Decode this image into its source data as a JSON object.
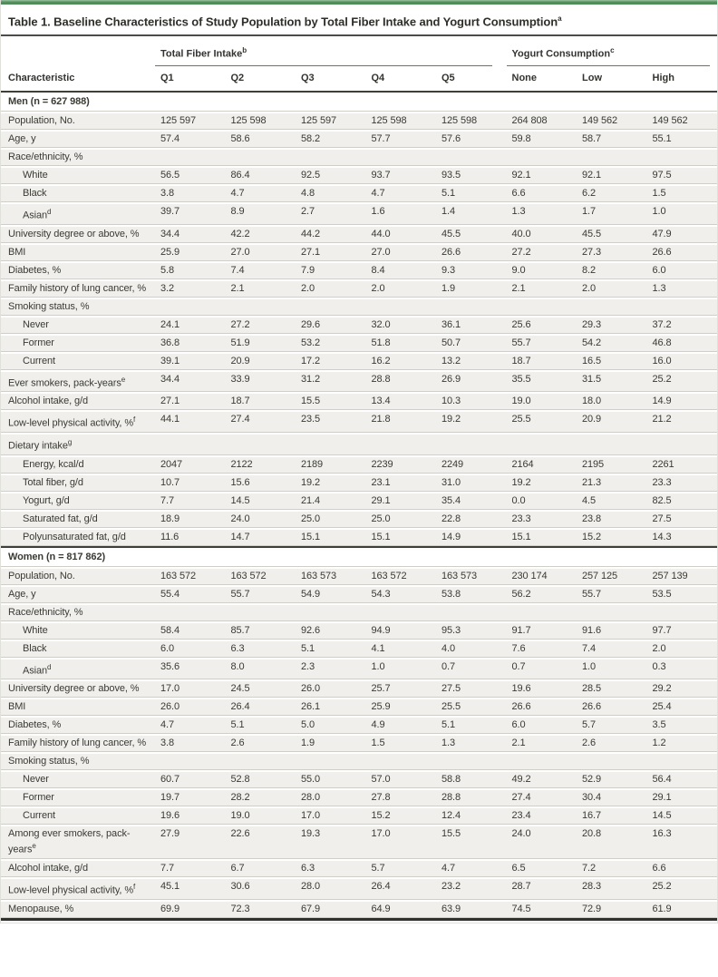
{
  "title": "Table 1. Baseline Characteristics of Study Population by Total Fiber Intake and Yogurt Consumption",
  "title_sup": "a",
  "colors": {
    "accent_bar": "#55915f",
    "row_background": "#f0efeb",
    "rule_dark": "#3f3f3a"
  },
  "header": {
    "characteristic": "Characteristic",
    "groups": [
      {
        "label": "Total Fiber Intake",
        "sup": "b",
        "cols": [
          "Q1",
          "Q2",
          "Q3",
          "Q4",
          "Q5"
        ]
      },
      {
        "label": "Yogurt Consumption",
        "sup": "c",
        "cols": [
          "None",
          "Low",
          "High"
        ]
      }
    ]
  },
  "sections": [
    {
      "label": "Men (n = 627 988)",
      "rows": [
        {
          "label": "Population, No.",
          "values": [
            "125 597",
            "125 598",
            "125 597",
            "125 598",
            "125 598",
            "264 808",
            "149 562",
            "149 562"
          ]
        },
        {
          "label": "Age, y",
          "values": [
            "57.4",
            "58.6",
            "58.2",
            "57.7",
            "57.6",
            "59.8",
            "58.7",
            "55.1"
          ]
        },
        {
          "label": "Race/ethnicity, %",
          "subheader": true
        },
        {
          "label": "White",
          "indent": 1,
          "values": [
            "56.5",
            "86.4",
            "92.5",
            "93.7",
            "93.5",
            "92.1",
            "92.1",
            "97.5"
          ]
        },
        {
          "label": "Black",
          "indent": 1,
          "values": [
            "3.8",
            "4.7",
            "4.8",
            "4.7",
            "5.1",
            "6.6",
            "6.2",
            "1.5"
          ]
        },
        {
          "label": "Asian",
          "sup": "d",
          "indent": 1,
          "values": [
            "39.7",
            "8.9",
            "2.7",
            "1.6",
            "1.4",
            "1.3",
            "1.7",
            "1.0"
          ]
        },
        {
          "label": "University degree or above, %",
          "values": [
            "34.4",
            "42.2",
            "44.2",
            "44.0",
            "45.5",
            "40.0",
            "45.5",
            "47.9"
          ]
        },
        {
          "label": "BMI",
          "values": [
            "25.9",
            "27.0",
            "27.1",
            "27.0",
            "26.6",
            "27.2",
            "27.3",
            "26.6"
          ]
        },
        {
          "label": "Diabetes, %",
          "values": [
            "5.8",
            "7.4",
            "7.9",
            "8.4",
            "9.3",
            "9.0",
            "8.2",
            "6.0"
          ]
        },
        {
          "label": "Family history of lung cancer, %",
          "values": [
            "3.2",
            "2.1",
            "2.0",
            "2.0",
            "1.9",
            "2.1",
            "2.0",
            "1.3"
          ]
        },
        {
          "label": "Smoking status, %",
          "subheader": true
        },
        {
          "label": "Never",
          "indent": 1,
          "values": [
            "24.1",
            "27.2",
            "29.6",
            "32.0",
            "36.1",
            "25.6",
            "29.3",
            "37.2"
          ]
        },
        {
          "label": "Former",
          "indent": 1,
          "values": [
            "36.8",
            "51.9",
            "53.2",
            "51.8",
            "50.7",
            "55.7",
            "54.2",
            "46.8"
          ]
        },
        {
          "label": "Current",
          "indent": 1,
          "values": [
            "39.1",
            "20.9",
            "17.2",
            "16.2",
            "13.2",
            "18.7",
            "16.5",
            "16.0"
          ]
        },
        {
          "label": "Ever smokers, pack-years",
          "sup": "e",
          "values": [
            "34.4",
            "33.9",
            "31.2",
            "28.8",
            "26.9",
            "35.5",
            "31.5",
            "25.2"
          ]
        },
        {
          "label": "Alcohol intake, g/d",
          "values": [
            "27.1",
            "18.7",
            "15.5",
            "13.4",
            "10.3",
            "19.0",
            "18.0",
            "14.9"
          ]
        },
        {
          "label": "Low-level physical activity, %",
          "sup": "f",
          "values": [
            "44.1",
            "27.4",
            "23.5",
            "21.8",
            "19.2",
            "25.5",
            "20.9",
            "21.2"
          ]
        },
        {
          "label": "Dietary intake",
          "sup": "g",
          "subheader": true
        },
        {
          "label": "Energy, kcal/d",
          "indent": 1,
          "values": [
            "2047",
            "2122",
            "2189",
            "2239",
            "2249",
            "2164",
            "2195",
            "2261"
          ]
        },
        {
          "label": "Total fiber, g/d",
          "indent": 1,
          "values": [
            "10.7",
            "15.6",
            "19.2",
            "23.1",
            "31.0",
            "19.2",
            "21.3",
            "23.3"
          ]
        },
        {
          "label": "Yogurt, g/d",
          "indent": 1,
          "values": [
            "7.7",
            "14.5",
            "21.4",
            "29.1",
            "35.4",
            "0.0",
            "4.5",
            "82.5"
          ]
        },
        {
          "label": "Saturated fat, g/d",
          "indent": 1,
          "values": [
            "18.9",
            "24.0",
            "25.0",
            "25.0",
            "22.8",
            "23.3",
            "23.8",
            "27.5"
          ]
        },
        {
          "label": "Polyunsaturated fat, g/d",
          "indent": 1,
          "values": [
            "11.6",
            "14.7",
            "15.1",
            "15.1",
            "14.9",
            "15.1",
            "15.2",
            "14.3"
          ]
        }
      ]
    },
    {
      "label": "Women (n = 817 862)",
      "rows": [
        {
          "label": "Population, No.",
          "values": [
            "163 572",
            "163 572",
            "163 573",
            "163 572",
            "163 573",
            "230 174",
            "257 125",
            "257 139"
          ]
        },
        {
          "label": "Age, y",
          "values": [
            "55.4",
            "55.7",
            "54.9",
            "54.3",
            "53.8",
            "56.2",
            "55.7",
            "53.5"
          ]
        },
        {
          "label": "Race/ethnicity, %",
          "subheader": true
        },
        {
          "label": "White",
          "indent": 1,
          "values": [
            "58.4",
            "85.7",
            "92.6",
            "94.9",
            "95.3",
            "91.7",
            "91.6",
            "97.7"
          ]
        },
        {
          "label": "Black",
          "indent": 1,
          "values": [
            "6.0",
            "6.3",
            "5.1",
            "4.1",
            "4.0",
            "7.6",
            "7.4",
            "2.0"
          ]
        },
        {
          "label": "Asian",
          "sup": "d",
          "indent": 1,
          "values": [
            "35.6",
            "8.0",
            "2.3",
            "1.0",
            "0.7",
            "0.7",
            "1.0",
            "0.3"
          ]
        },
        {
          "label": "University degree or above, %",
          "values": [
            "17.0",
            "24.5",
            "26.0",
            "25.7",
            "27.5",
            "19.6",
            "28.5",
            "29.2"
          ]
        },
        {
          "label": "BMI",
          "values": [
            "26.0",
            "26.4",
            "26.1",
            "25.9",
            "25.5",
            "26.6",
            "26.6",
            "25.4"
          ]
        },
        {
          "label": "Diabetes, %",
          "values": [
            "4.7",
            "5.1",
            "5.0",
            "4.9",
            "5.1",
            "6.0",
            "5.7",
            "3.5"
          ]
        },
        {
          "label": "Family history of lung cancer, %",
          "values": [
            "3.8",
            "2.6",
            "1.9",
            "1.5",
            "1.3",
            "2.1",
            "2.6",
            "1.2"
          ]
        },
        {
          "label": "Smoking status, %",
          "subheader": true
        },
        {
          "label": "Never",
          "indent": 1,
          "values": [
            "60.7",
            "52.8",
            "55.0",
            "57.0",
            "58.8",
            "49.2",
            "52.9",
            "56.4"
          ]
        },
        {
          "label": "Former",
          "indent": 1,
          "values": [
            "19.7",
            "28.2",
            "28.0",
            "27.8",
            "28.8",
            "27.4",
            "30.4",
            "29.1"
          ]
        },
        {
          "label": "Current",
          "indent": 1,
          "values": [
            "19.6",
            "19.0",
            "17.0",
            "15.2",
            "12.4",
            "23.4",
            "16.7",
            "14.5"
          ]
        },
        {
          "label": "Among ever smokers, pack-years",
          "sup": "e",
          "values": [
            "27.9",
            "22.6",
            "19.3",
            "17.0",
            "15.5",
            "24.0",
            "20.8",
            "16.3"
          ]
        },
        {
          "label": "Alcohol intake, g/d",
          "values": [
            "7.7",
            "6.7",
            "6.3",
            "5.7",
            "4.7",
            "6.5",
            "7.2",
            "6.6"
          ]
        },
        {
          "label": "Low-level physical activity, %",
          "sup": "f",
          "values": [
            "45.1",
            "30.6",
            "28.0",
            "26.4",
            "23.2",
            "28.7",
            "28.3",
            "25.2"
          ]
        },
        {
          "label": "Menopause, %",
          "values": [
            "69.9",
            "72.3",
            "67.9",
            "64.9",
            "63.9",
            "74.5",
            "72.9",
            "61.9"
          ]
        }
      ]
    }
  ]
}
